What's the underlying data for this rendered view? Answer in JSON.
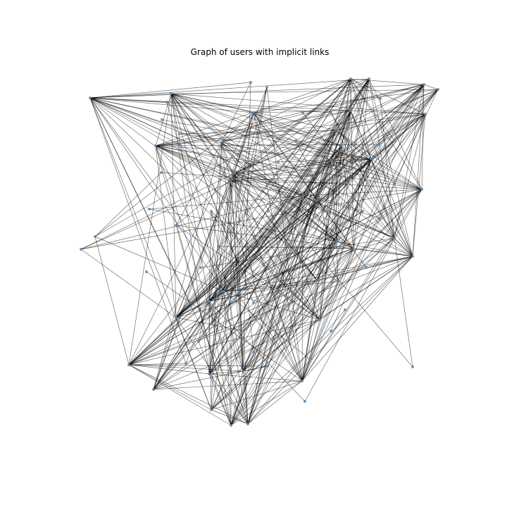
{
  "figure": {
    "title": "Graph of users with implicit links"
  },
  "colors": {
    "background": "#ffffff",
    "edge": "#000000",
    "node": "#4f8cc0"
  },
  "graph": {
    "layout": "spring",
    "node_count": 92,
    "edges_drawn": "dense (hubs connected to many nodes)"
  }
}
